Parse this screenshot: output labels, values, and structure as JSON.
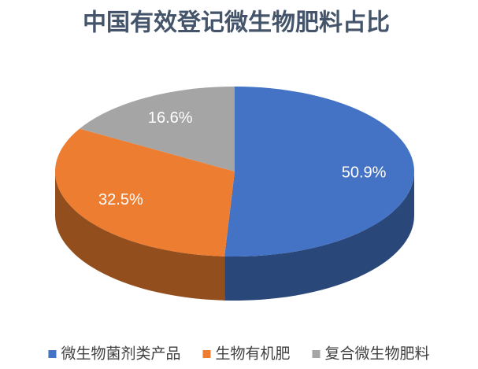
{
  "chart_data": {
    "type": "pie",
    "title": "中国有效登记微生物肥料占比",
    "categories": [
      "微生物菌剂类产品",
      "生物有机肥",
      "复合微生物肥料"
    ],
    "values": [
      50.9,
      32.5,
      16.6
    ],
    "value_labels": [
      "50.9%",
      "32.5%",
      "16.6%"
    ],
    "colors": [
      "#4472c4",
      "#ed7d31",
      "#a5a5a5"
    ],
    "legend": "bottom"
  }
}
